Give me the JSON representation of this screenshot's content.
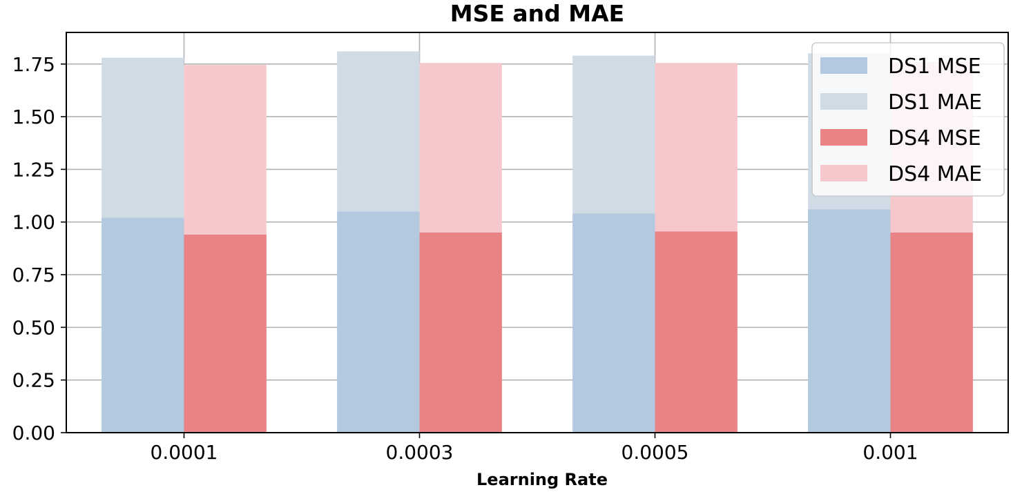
{
  "chart_data": {
    "type": "bar",
    "title": "MSE and MAE",
    "xlabel": "Learning Rate",
    "ylabel": "",
    "categories": [
      "0.0001",
      "0.0003",
      "0.0005",
      "0.001"
    ],
    "ylim": [
      0,
      1.9
    ],
    "yticks": [
      "0.00",
      "0.25",
      "0.50",
      "0.75",
      "1.00",
      "1.25",
      "1.50",
      "1.75"
    ],
    "grid": true,
    "legend_position": "top-right",
    "series": [
      {
        "name": "DS1 MSE",
        "group": "DS1",
        "layer": "front",
        "color": "#b3c9e0",
        "values": [
          1.02,
          1.05,
          1.04,
          1.06
        ]
      },
      {
        "name": "DS1 MAE",
        "group": "DS1",
        "layer": "back",
        "color": "#d0dbe6",
        "values": [
          1.78,
          1.81,
          1.79,
          1.8
        ]
      },
      {
        "name": "DS4 MSE",
        "group": "DS4",
        "layer": "front",
        "color": "#ea8386",
        "values": [
          0.94,
          0.95,
          0.955,
          0.95
        ]
      },
      {
        "name": "DS4 MAE",
        "group": "DS4",
        "layer": "back",
        "color": "#f6c8cb",
        "values": [
          1.745,
          1.755,
          1.755,
          1.76
        ]
      }
    ]
  }
}
